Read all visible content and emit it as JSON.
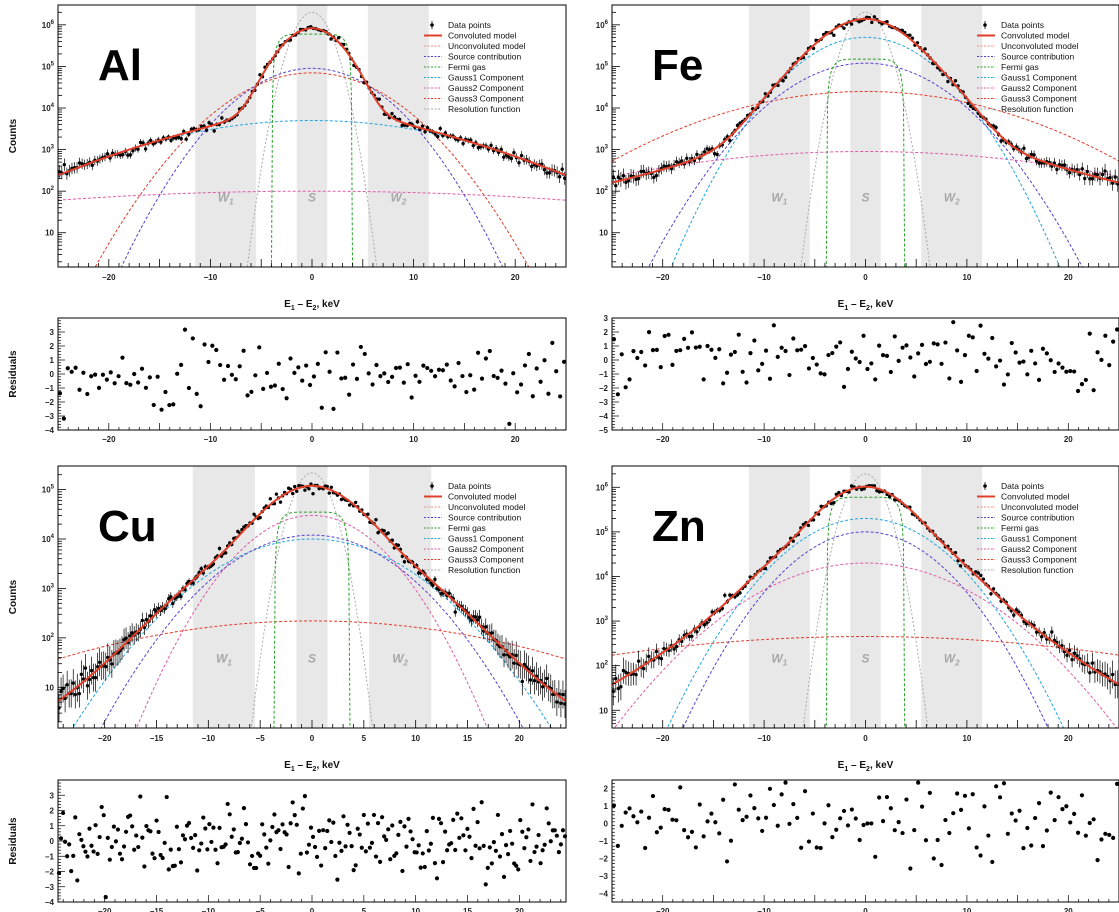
{
  "legend": [
    {
      "label": "Data points",
      "color": "#000000",
      "style": "marker"
    },
    {
      "label": "Convoluted model",
      "color": "#e0402a",
      "style": "solid"
    },
    {
      "label": "Unconvoluted model",
      "color": "#f08a7a",
      "style": "dash"
    },
    {
      "label": "Source contribution",
      "color": "#5a3fd0",
      "style": "dash"
    },
    {
      "label": "Fermi gas",
      "color": "#2aa02a",
      "style": "dash"
    },
    {
      "label": "Gauss1 Component",
      "color": "#1fa5e0",
      "style": "dash"
    },
    {
      "label": "Gauss2 Component",
      "color": "#e05aa8",
      "style": "dash"
    },
    {
      "label": "Gauss3 Component",
      "color": "#e03a2a",
      "style": "dash"
    },
    {
      "label": "Resolution function",
      "color": "#aaaaaa",
      "style": "dash"
    }
  ],
  "bands": [
    {
      "label": "W",
      "sub": "1",
      "from": -11.5,
      "to": -5.5
    },
    {
      "label": "S",
      "sub": "",
      "from": -1.5,
      "to": 1.5
    },
    {
      "label": "W",
      "sub": "2",
      "from": 5.5,
      "to": 11.5
    }
  ],
  "chart_data": [
    {
      "type": "line",
      "element": "Al",
      "xlabel": "E1 – E2, keV",
      "ylabel": "Counts",
      "y_scale": "log",
      "xlim": [
        -25,
        25
      ],
      "ylim": [
        1.5,
        3000000
      ],
      "x_ticks": [
        -20,
        -10,
        0,
        10,
        20
      ],
      "y_ticks": [
        10,
        100,
        1000,
        10000,
        100000,
        1000000
      ],
      "peak": 800000,
      "data_points_approx": 200,
      "components": {
        "convoluted": {
          "amp": 800000,
          "width": 2.1,
          "tail_amp": 25000,
          "tail_decay": 3.0
        },
        "source": {
          "amp": 90000,
          "sigma": 4.0
        },
        "fermi_gas": {
          "amp": 600000,
          "edge": 3.3
        },
        "gauss1": {
          "amp": 5000,
          "sigma": 10.0
        },
        "gauss2": {
          "amp": 100,
          "sigma": 25.0
        },
        "gauss3": {
          "amp": 70000,
          "sigma": 4.6
        },
        "resolution": {
          "amp": 2000000,
          "sigma": 1.2
        }
      }
    },
    {
      "type": "scatter",
      "element": "Al",
      "ylabel": "Residuals",
      "xlim": [
        -25,
        25
      ],
      "ylim": [
        -4,
        4
      ],
      "x_ticks": [
        -20,
        -10,
        0,
        10,
        20
      ],
      "y_ticks": [
        3,
        2,
        1,
        0,
        -1,
        -2,
        -3,
        -4
      ],
      "n_points": 130
    },
    {
      "type": "line",
      "element": "Fe",
      "xlabel": "E1 – E2, keV",
      "ylabel": "",
      "y_scale": "log",
      "xlim": [
        -25,
        25
      ],
      "ylim": [
        1.5,
        3000000
      ],
      "x_ticks": [
        -20,
        -10,
        0,
        10,
        20
      ],
      "y_ticks": [
        10,
        100,
        1000,
        10000,
        100000,
        1000000
      ],
      "peak": 900000,
      "data_points_approx": 200,
      "components": {
        "convoluted": {
          "amp": 900000,
          "width": 2.6,
          "tail_amp": 40000,
          "tail_decay": 3.4
        },
        "source": {
          "amp": 120000,
          "sigma": 4.5
        },
        "fermi_gas": {
          "amp": 150000,
          "edge": 3.2
        },
        "gauss1": {
          "amp": 500000,
          "sigma": 3.8
        },
        "gauss2": {
          "amp": 900,
          "sigma": 15.0
        },
        "gauss3": {
          "amp": 25000,
          "sigma": 9.0
        },
        "resolution": {
          "amp": 2000000,
          "sigma": 1.2
        }
      }
    },
    {
      "type": "scatter",
      "element": "Fe",
      "ylabel": "",
      "xlim": [
        -25,
        25
      ],
      "ylim": [
        -5,
        3
      ],
      "x_ticks": [
        -20,
        -10,
        0,
        10,
        20
      ],
      "y_ticks": [
        3,
        2,
        1,
        0,
        -1,
        -2,
        -3,
        -4,
        -5
      ],
      "n_points": 130
    },
    {
      "type": "line",
      "element": "Cu",
      "xlabel": "E1 – E2, keV",
      "ylabel": "Counts",
      "y_scale": "log",
      "xlim": [
        -24.5,
        24.5
      ],
      "ylim": [
        1.5,
        300000
      ],
      "x_ticks": [
        -20,
        -15,
        -10,
        -5,
        0,
        5,
        10,
        15,
        20
      ],
      "y_ticks": [
        10,
        100,
        1000,
        10000,
        100000
      ],
      "peak": 85000,
      "data_points_approx": 250,
      "components": {
        "convoluted": {
          "amp": 85000,
          "width": 2.8,
          "tail_amp": 8000,
          "tail_decay": 3.3
        },
        "source": {
          "amp": 12000,
          "sigma": 4.8
        },
        "fermi_gas": {
          "amp": 35000,
          "edge": 3.0
        },
        "gauss1": {
          "amp": 10000,
          "sigma": 5.5
        },
        "gauss2": {
          "amp": 30000,
          "sigma": 3.8
        },
        "gauss3": {
          "amp": 220,
          "sigma": 13.0
        },
        "resolution": {
          "amp": 220000,
          "sigma": 1.2
        }
      }
    },
    {
      "type": "scatter",
      "element": "Cu",
      "ylabel": "Residuals",
      "xlim": [
        -24.5,
        24.5
      ],
      "ylim": [
        -4,
        4
      ],
      "x_ticks": [
        -20,
        -15,
        -10,
        -5,
        0,
        5,
        10,
        15,
        20
      ],
      "y_ticks": [
        3,
        2,
        1,
        0,
        -1,
        -2,
        -3,
        -4
      ],
      "n_points": 250
    },
    {
      "type": "line",
      "element": "Zn",
      "xlabel": "E1 – E2, keV",
      "ylabel": "",
      "y_scale": "log",
      "xlim": [
        -25,
        25
      ],
      "ylim": [
        4,
        3000000
      ],
      "x_ticks": [
        -20,
        -10,
        0,
        10,
        20
      ],
      "y_ticks": [
        10,
        100,
        1000,
        10000,
        100000,
        1000000
      ],
      "peak": 800000,
      "data_points_approx": 200,
      "components": {
        "convoluted": {
          "amp": 800000,
          "width": 2.6,
          "tail_amp": 45000,
          "tail_decay": 3.5
        },
        "source": {
          "amp": 100000,
          "sigma": 4.0
        },
        "fermi_gas": {
          "amp": 600000,
          "edge": 3.2
        },
        "gauss1": {
          "amp": 200000,
          "sigma": 4.2
        },
        "gauss2": {
          "amp": 20000,
          "sigma": 6.0
        },
        "gauss3": {
          "amp": 450,
          "sigma": 18.0
        },
        "resolution": {
          "amp": 2000000,
          "sigma": 1.2
        }
      }
    },
    {
      "type": "scatter",
      "element": "Zn",
      "ylabel": "",
      "xlim": [
        -25,
        25
      ],
      "ylim": [
        -4.5,
        2.5
      ],
      "x_ticks": [
        -20,
        -10,
        0,
        10,
        20
      ],
      "y_ticks": [
        2,
        1,
        0,
        -1,
        -2,
        -3,
        -4
      ],
      "n_points": 130
    }
  ]
}
